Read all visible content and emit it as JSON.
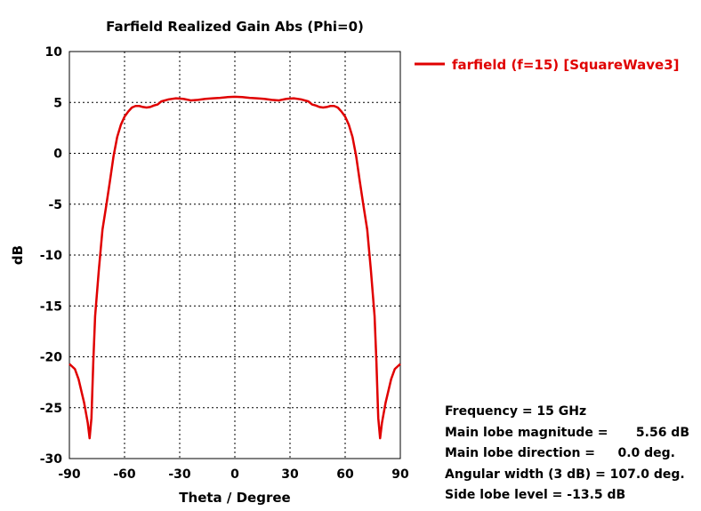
{
  "chart_data": {
    "type": "line",
    "title": "Farfield Realized Gain Abs (Phi=0)",
    "xlabel": "Theta / Degree",
    "ylabel": "dB",
    "xlim": [
      -90,
      90
    ],
    "ylim": [
      -30,
      10
    ],
    "xticks": [
      -90,
      -60,
      -30,
      0,
      30,
      60,
      90
    ],
    "yticks": [
      10,
      5,
      0,
      -5,
      -10,
      -15,
      -20,
      -25,
      -30
    ],
    "xtick_labels": [
      "-90",
      "-60",
      "-30",
      "0",
      "30",
      "60",
      "90"
    ],
    "ytick_labels": [
      "10",
      "5",
      "0",
      "-5",
      "-10",
      "-15",
      "-20",
      "-25",
      "-30"
    ],
    "grid": true,
    "legend_position": "top-right outside",
    "series": [
      {
        "name": "farfield (f=15) [SquareWave3]",
        "color": "#e00000",
        "x": [
          -90,
          -87,
          -85,
          -82,
          -80,
          -79,
          -78,
          -77,
          -76,
          -74,
          -72,
          -70,
          -68,
          -66,
          -64,
          -62,
          -60,
          -58,
          -56,
          -54,
          -52,
          -50,
          -48,
          -46,
          -44,
          -42,
          -40,
          -36,
          -32,
          -28,
          -24,
          -20,
          -16,
          -12,
          -8,
          -4,
          0,
          4,
          8,
          12,
          16,
          20,
          24,
          28,
          32,
          36,
          40,
          42,
          44,
          46,
          48,
          50,
          52,
          54,
          56,
          58,
          60,
          62,
          64,
          66,
          68,
          70,
          72,
          74,
          76,
          77,
          78,
          79,
          80,
          82,
          85,
          87,
          90
        ],
        "y": [
          -20.7,
          -21.2,
          -22.2,
          -24.5,
          -26.5,
          -28.0,
          -26.0,
          -20.5,
          -16.0,
          -11.5,
          -7.5,
          -5.2,
          -2.8,
          -0.3,
          1.6,
          2.8,
          3.6,
          4.1,
          4.5,
          4.65,
          4.65,
          4.55,
          4.5,
          4.55,
          4.7,
          4.8,
          5.1,
          5.3,
          5.4,
          5.35,
          5.2,
          5.25,
          5.35,
          5.4,
          5.45,
          5.52,
          5.56,
          5.52,
          5.45,
          5.4,
          5.35,
          5.25,
          5.2,
          5.35,
          5.4,
          5.3,
          5.1,
          4.8,
          4.7,
          4.55,
          4.5,
          4.55,
          4.65,
          4.65,
          4.5,
          4.1,
          3.6,
          2.8,
          1.6,
          -0.3,
          -2.8,
          -5.2,
          -7.5,
          -11.5,
          -16.0,
          -20.5,
          -26.0,
          -28.0,
          -26.5,
          -24.5,
          -22.2,
          -21.2,
          -20.7
        ]
      }
    ]
  },
  "info": {
    "frequency": "Frequency = 15 GHz",
    "magnitude_label": "Main lobe magnitude =",
    "magnitude_value": "5.56 dB",
    "direction_label": "Main lobe direction =",
    "direction_value": "0.0 deg.",
    "angular_width": "Angular width (3 dB) =  107.0 deg.",
    "side_lobe": "Side lobe level =  -13.5 dB"
  }
}
